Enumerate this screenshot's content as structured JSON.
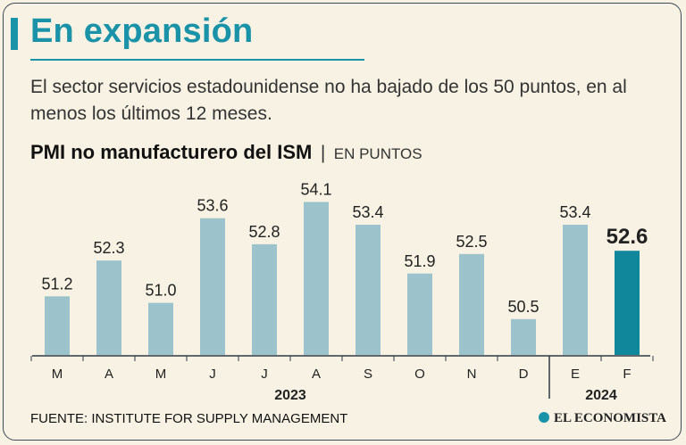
{
  "header": {
    "title": "En expansión",
    "subtitle": "El sector servicios estadounidense no ha bajado de los 50 puntos, en al menos los últimos 12 meses."
  },
  "chart_heading": {
    "title": "PMI no manufacturero del ISM",
    "separator": "|",
    "unit": "EN PUNTOS"
  },
  "chart_data": {
    "type": "bar",
    "title": "PMI no manufacturero del ISM",
    "ylabel": "EN PUNTOS",
    "xlabel": "",
    "categories": [
      "M",
      "A",
      "M",
      "J",
      "J",
      "A",
      "S",
      "O",
      "N",
      "D",
      "E",
      "F"
    ],
    "values": [
      51.2,
      52.3,
      51.0,
      53.6,
      52.8,
      54.1,
      53.4,
      51.9,
      52.5,
      50.5,
      53.4,
      52.6
    ],
    "value_labels": [
      "51.2",
      "52.3",
      "51.0",
      "53.6",
      "52.8",
      "54.1",
      "53.4",
      "51.9",
      "52.5",
      "50.5",
      "53.4",
      "52.6"
    ],
    "highlight_index": 11,
    "years": [
      {
        "label": "2023",
        "start": 0,
        "end": 9
      },
      {
        "label": "2024",
        "start": 10,
        "end": 11
      }
    ],
    "colors": {
      "bar": "#9cc3cc",
      "highlight": "#11879c"
    }
  },
  "footer": {
    "source": "FUENTE: INSTITUTE FOR SUPPLY MANAGEMENT",
    "logo_text": "EL ECONOMISTA"
  }
}
